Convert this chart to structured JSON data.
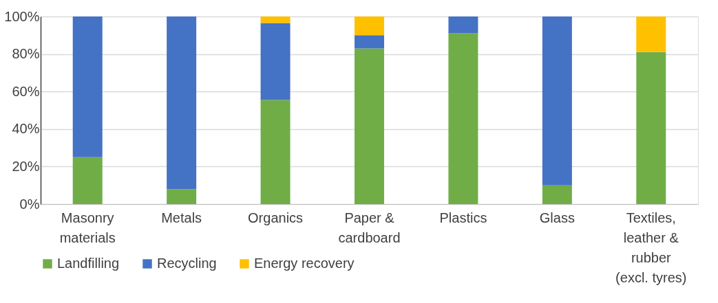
{
  "chart_data": {
    "type": "bar",
    "stacked": true,
    "categories": [
      "Masonry\nmaterials",
      "Metals",
      "Organics",
      "Paper &\ncardboard",
      "Plastics",
      "Glass",
      "Textiles,\nleather &\nrubber\n(excl. tyres)"
    ],
    "series": [
      {
        "name": "Landfilling",
        "color": "#70ad47",
        "values": [
          25,
          8,
          55.5,
          83,
          91,
          10,
          81
        ]
      },
      {
        "name": "Recycling",
        "color": "#4472c4",
        "values": [
          75,
          92,
          41,
          7,
          9,
          90,
          0
        ]
      },
      {
        "name": "Energy recovery",
        "color": "#ffc000",
        "values": [
          0,
          0,
          3.5,
          10,
          0,
          0,
          19
        ]
      }
    ],
    "ylim": [
      0,
      100
    ],
    "yticks": [
      {
        "value": 0,
        "label": "0%"
      },
      {
        "value": 20,
        "label": "20%"
      },
      {
        "value": 40,
        "label": "40%"
      },
      {
        "value": 60,
        "label": "60%"
      },
      {
        "value": 80,
        "label": "80%"
      },
      {
        "value": 100,
        "label": "100%"
      }
    ],
    "grid": "y",
    "legend": "bottom"
  }
}
